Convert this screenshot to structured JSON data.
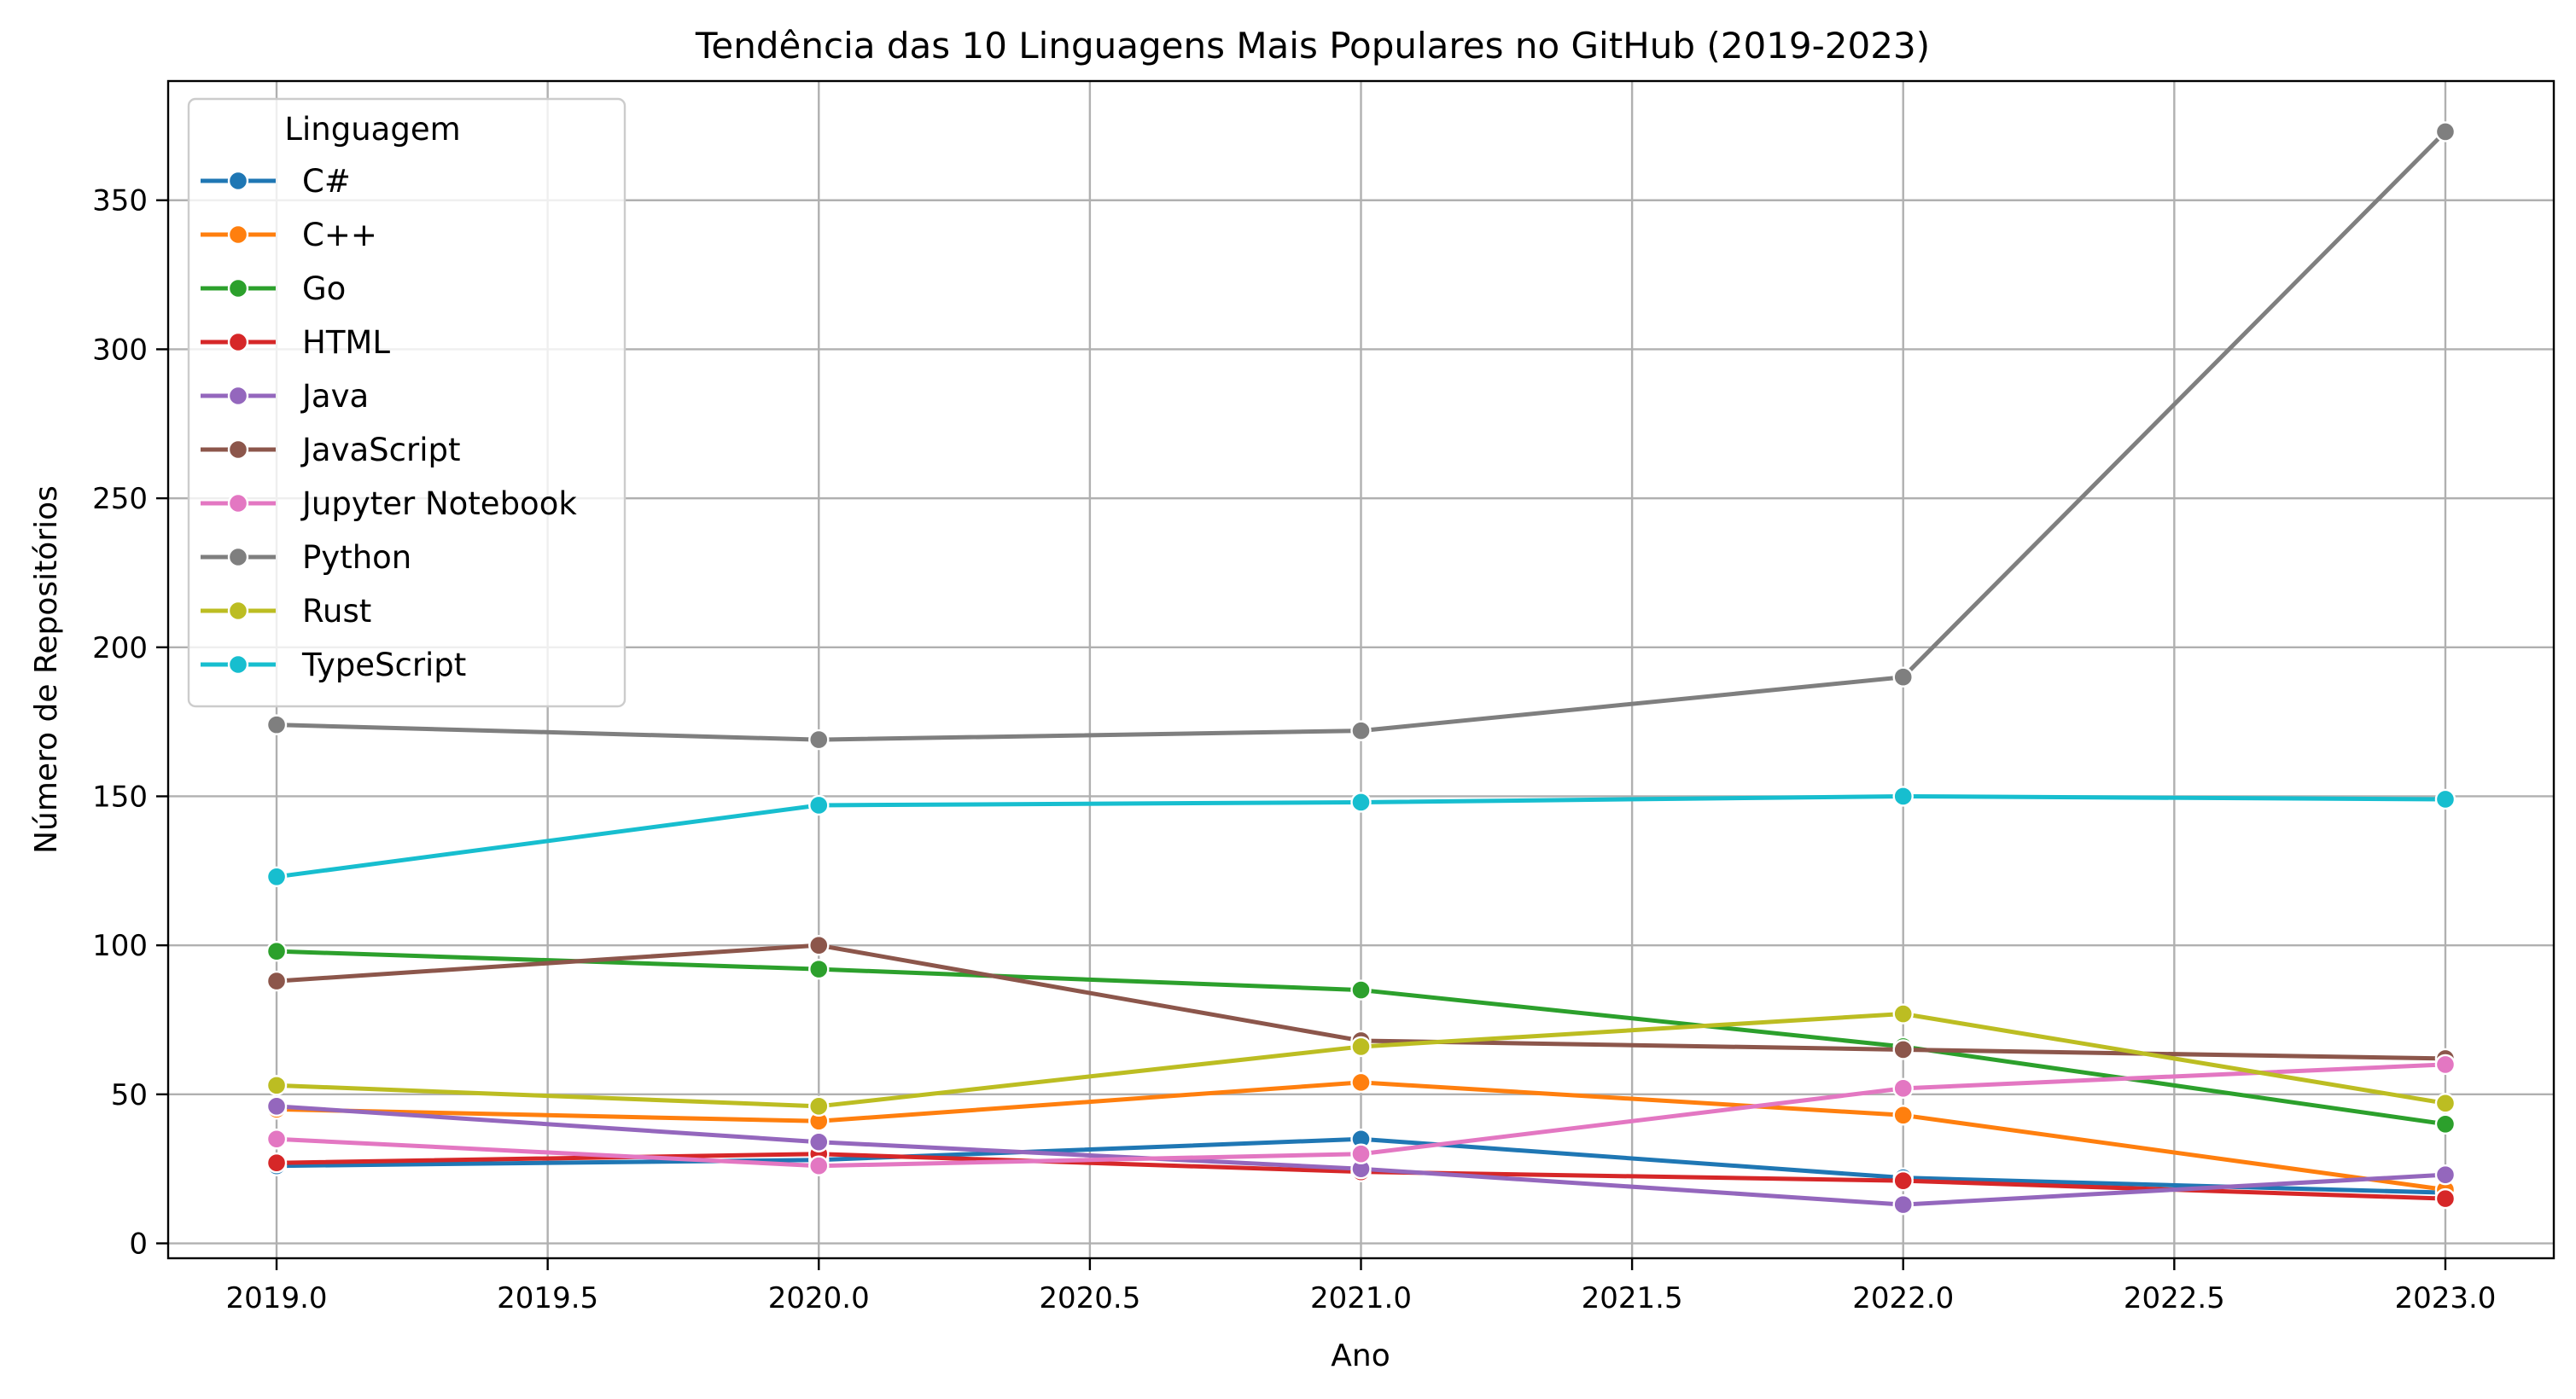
{
  "chart_data": {
    "type": "line",
    "title": "Tendência das 10 Linguagens Mais Populares no GitHub (2019-2023)",
    "xlabel": "Ano",
    "ylabel": "Número de Repositórios",
    "x": [
      2019,
      2020,
      2021,
      2022,
      2023
    ],
    "xlim": [
      2018.8,
      2023.2
    ],
    "ylim": [
      -5,
      390
    ],
    "xticks": [
      "2019.0",
      "2019.5",
      "2020.0",
      "2020.5",
      "2021.0",
      "2021.5",
      "2022.0",
      "2022.5",
      "2023.0"
    ],
    "yticks": [
      "0",
      "50",
      "100",
      "150",
      "200",
      "250",
      "300",
      "350"
    ],
    "grid": true,
    "legend": {
      "title": "Linguagem",
      "placement": "top-left"
    },
    "series": [
      {
        "name": "C#",
        "color": "#1f77b4",
        "values": [
          26,
          28,
          35,
          22,
          17
        ]
      },
      {
        "name": "C++",
        "color": "#ff7f0e",
        "values": [
          45,
          41,
          54,
          43,
          18
        ]
      },
      {
        "name": "Go",
        "color": "#2ca02c",
        "values": [
          98,
          92,
          85,
          66,
          40
        ]
      },
      {
        "name": "HTML",
        "color": "#d62728",
        "values": [
          27,
          30,
          24,
          21,
          15
        ]
      },
      {
        "name": "Java",
        "color": "#9467bd",
        "values": [
          46,
          34,
          25,
          13,
          23
        ]
      },
      {
        "name": "JavaScript",
        "color": "#8c564b",
        "values": [
          88,
          100,
          68,
          65,
          62
        ]
      },
      {
        "name": "Jupyter Notebook",
        "color": "#e377c2",
        "values": [
          35,
          26,
          30,
          52,
          60
        ]
      },
      {
        "name": "Python",
        "color": "#7f7f7f",
        "values": [
          174,
          169,
          172,
          190,
          373
        ]
      },
      {
        "name": "Rust",
        "color": "#bcbd22",
        "values": [
          53,
          46,
          66,
          77,
          47
        ]
      },
      {
        "name": "TypeScript",
        "color": "#17becf",
        "values": [
          123,
          147,
          148,
          150,
          149
        ]
      }
    ]
  }
}
